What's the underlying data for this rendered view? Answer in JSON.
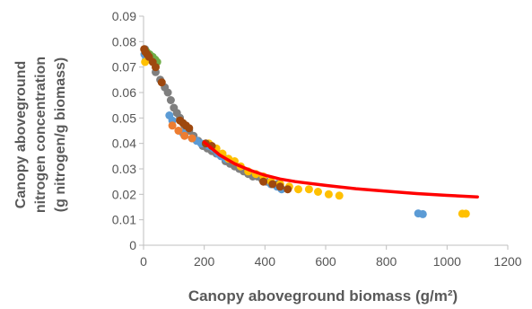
{
  "chart_data": {
    "type": "scatter",
    "title": "",
    "xlabel": "Canopy aboveground biomass (g/m²)",
    "ylabel_lines": [
      "Canopy aboveground",
      "nitrogen concentration",
      "(g nitrogen/g biomass)"
    ],
    "xlim": [
      0,
      1200
    ],
    "ylim": [
      0,
      0.09
    ],
    "xticks": [
      "0",
      "200",
      "400",
      "600",
      "800",
      "1000",
      "1200"
    ],
    "yticks": [
      "0",
      "0.01",
      "0.02",
      "0.03",
      "0.04",
      "0.05",
      "0.06",
      "0.07",
      "0.08",
      "0.09"
    ],
    "grid": false,
    "legend": "none",
    "series": [
      {
        "color": "#7f7f7f",
        "points": [
          [
            5,
            0.077
          ],
          [
            10,
            0.075
          ],
          [
            15,
            0.074
          ],
          [
            25,
            0.073
          ],
          [
            40,
            0.068
          ],
          [
            55,
            0.065
          ],
          [
            70,
            0.062
          ],
          [
            80,
            0.06
          ],
          [
            90,
            0.057
          ],
          [
            100,
            0.054
          ],
          [
            110,
            0.052
          ],
          [
            120,
            0.05
          ],
          [
            135,
            0.047
          ],
          [
            150,
            0.045
          ],
          [
            165,
            0.043
          ],
          [
            180,
            0.041
          ],
          [
            195,
            0.039
          ],
          [
            210,
            0.038
          ],
          [
            225,
            0.037
          ],
          [
            240,
            0.036
          ],
          [
            255,
            0.035
          ],
          [
            270,
            0.033
          ],
          [
            285,
            0.032
          ],
          [
            300,
            0.031
          ],
          [
            315,
            0.03
          ],
          [
            330,
            0.029
          ],
          [
            345,
            0.028
          ],
          [
            360,
            0.027
          ],
          [
            375,
            0.027
          ],
          [
            390,
            0.026
          ],
          [
            405,
            0.025
          ],
          [
            420,
            0.024
          ],
          [
            440,
            0.024
          ]
        ]
      },
      {
        "color": "#5b9bd5",
        "points": [
          [
            3,
            0.075
          ],
          [
            8,
            0.073
          ],
          [
            85,
            0.051
          ],
          [
            95,
            0.049
          ],
          [
            130,
            0.044
          ],
          [
            160,
            0.042
          ],
          [
            175,
            0.041
          ],
          [
            190,
            0.04
          ],
          [
            205,
            0.04
          ],
          [
            215,
            0.039
          ],
          [
            230,
            0.038
          ],
          [
            245,
            0.036
          ],
          [
            255,
            0.035
          ],
          [
            270,
            0.034
          ],
          [
            420,
            0.024
          ],
          [
            440,
            0.023
          ],
          [
            455,
            0.022
          ],
          [
            905,
            0.0125
          ],
          [
            920,
            0.0122
          ]
        ]
      },
      {
        "color": "#ffc000",
        "points": [
          [
            5,
            0.072
          ],
          [
            215,
            0.04
          ],
          [
            240,
            0.038
          ],
          [
            260,
            0.036
          ],
          [
            280,
            0.034
          ],
          [
            300,
            0.033
          ],
          [
            320,
            0.031
          ],
          [
            345,
            0.029
          ],
          [
            370,
            0.028
          ],
          [
            395,
            0.027
          ],
          [
            420,
            0.025
          ],
          [
            450,
            0.024
          ],
          [
            480,
            0.023
          ],
          [
            510,
            0.022
          ],
          [
            545,
            0.022
          ],
          [
            575,
            0.021
          ],
          [
            610,
            0.02
          ],
          [
            645,
            0.0195
          ],
          [
            1050,
            0.0124
          ],
          [
            1062,
            0.0124
          ]
        ]
      },
      {
        "color": "#ed7d31",
        "points": [
          [
            95,
            0.047
          ],
          [
            115,
            0.045
          ],
          [
            135,
            0.043
          ],
          [
            160,
            0.042
          ]
        ]
      },
      {
        "color": "#70ad47",
        "points": [
          [
            10,
            0.076
          ],
          [
            20,
            0.075
          ],
          [
            30,
            0.074
          ],
          [
            38,
            0.073
          ],
          [
            45,
            0.072
          ]
        ]
      },
      {
        "color": "#9e480e",
        "points": [
          [
            2,
            0.077
          ],
          [
            6,
            0.076
          ],
          [
            12,
            0.075
          ],
          [
            18,
            0.074
          ],
          [
            30,
            0.072
          ],
          [
            40,
            0.07
          ],
          [
            60,
            0.064
          ],
          [
            120,
            0.049
          ],
          [
            130,
            0.048
          ],
          [
            140,
            0.047
          ],
          [
            150,
            0.046
          ],
          [
            205,
            0.04
          ],
          [
            225,
            0.039
          ],
          [
            395,
            0.025
          ],
          [
            425,
            0.024
          ],
          [
            450,
            0.023
          ],
          [
            475,
            0.022
          ]
        ]
      }
    ],
    "fit_line": {
      "color": "#ff0000",
      "points": [
        [
          200,
          0.0405
        ],
        [
          250,
          0.0355
        ],
        [
          300,
          0.032
        ],
        [
          350,
          0.0295
        ],
        [
          400,
          0.0275
        ],
        [
          450,
          0.026
        ],
        [
          500,
          0.025
        ],
        [
          600,
          0.0235
        ],
        [
          700,
          0.0222
        ],
        [
          800,
          0.0212
        ],
        [
          900,
          0.0203
        ],
        [
          1000,
          0.0196
        ],
        [
          1100,
          0.019
        ]
      ]
    }
  }
}
